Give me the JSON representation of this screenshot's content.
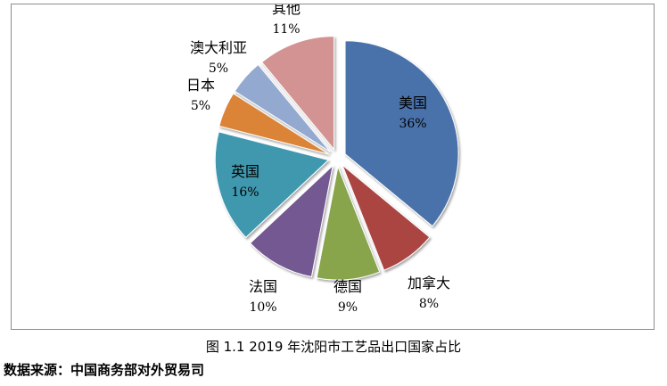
{
  "chart_data": {
    "type": "pie",
    "categories": [
      "美国",
      "加拿大",
      "德国",
      "法国",
      "英国",
      "日本",
      "澳大利亚",
      "其他"
    ],
    "values": [
      36,
      8,
      9,
      10,
      16,
      5,
      5,
      11
    ],
    "value_labels": [
      "36%",
      "8%",
      "9%",
      "10%",
      "16%",
      "5%",
      "5%",
      "11%"
    ],
    "colors": [
      "#4a72aa",
      "#ab4442",
      "#88a54c",
      "#735891",
      "#3f98ae",
      "#db8437",
      "#93a9d0",
      "#d39393"
    ],
    "exploded": true,
    "legend": "none"
  },
  "caption": "图 1.1 2019 年沈阳市工艺品出口国家占比",
  "source": "数据来源：中国商务部对外贸易司"
}
